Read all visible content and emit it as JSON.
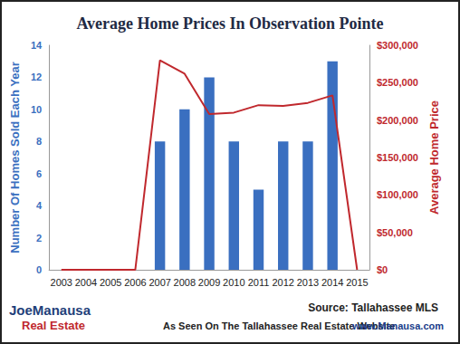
{
  "chart_data": {
    "type": "bar",
    "title": "Average Home Prices In Observation Pointe",
    "categories": [
      "2003",
      "2004",
      "2005",
      "2006",
      "2007",
      "2008",
      "2009",
      "2010",
      "2011",
      "2012",
      "2013",
      "2014",
      "2015"
    ],
    "series": [
      {
        "type": "bar",
        "color": "#3a6fc0",
        "values": [
          0,
          0,
          0,
          0,
          8,
          10,
          12,
          8,
          5,
          8,
          8,
          13,
          0
        ]
      },
      {
        "type": "line",
        "axis": "y2",
        "color": "#c0282d",
        "values": [
          0,
          0,
          0,
          0,
          280000,
          262000,
          208000,
          210000,
          220000,
          219000,
          223000,
          233000,
          0
        ]
      }
    ],
    "ylabel": "Number Of Homes Sold Each Year",
    "y2label": "Average Home Price",
    "ylim": [
      0,
      14
    ],
    "yticks": [
      0,
      2,
      4,
      6,
      8,
      10,
      12,
      14
    ],
    "y2lim": [
      0,
      300000
    ],
    "y2ticks": [
      {
        "value": 0,
        "label": "$0"
      },
      {
        "value": 50000,
        "label": "$50,000"
      },
      {
        "value": 100000,
        "label": "$100,000"
      },
      {
        "value": 150000,
        "label": "$150,000"
      },
      {
        "value": 200000,
        "label": "$200,000"
      },
      {
        "value": 250000,
        "label": "$250,000"
      },
      {
        "value": 300000,
        "label": "$300,000"
      }
    ],
    "grid": false,
    "annotations": [
      "Source: Tallahassee MLS",
      "As Seen On The Tallahassee Real Estate Website",
      "www.Manausa.com",
      "JoeManausa",
      "Real Estate"
    ]
  }
}
